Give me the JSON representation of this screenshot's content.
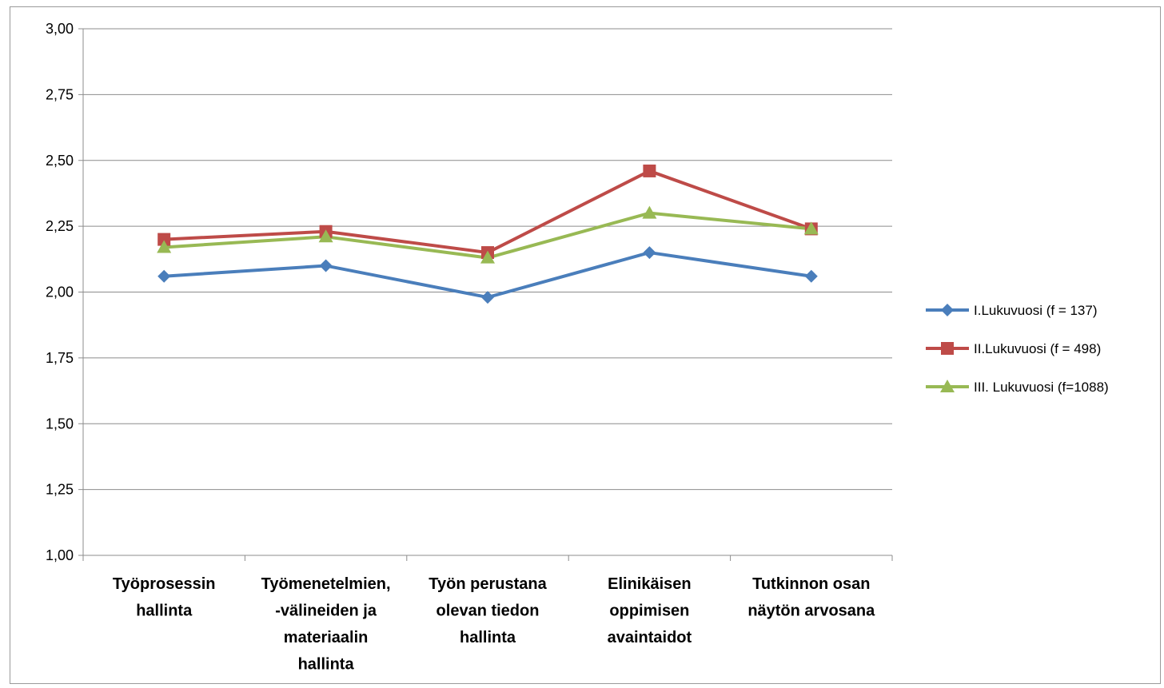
{
  "chart_data": {
    "type": "line",
    "categories": [
      [
        "Työprosessin",
        "hallinta"
      ],
      [
        "Työmenetelmien,",
        "-välineiden ja",
        "materiaalin",
        "hallinta"
      ],
      [
        "Työn perustana",
        "olevan tiedon",
        "hallinta"
      ],
      [
        "Elinikäisen",
        "oppimisen",
        "avaintaidot"
      ],
      [
        "Tutkinnon osan",
        "näytön arvosana"
      ]
    ],
    "y_ticks": [
      "1,00",
      "1,25",
      "1,50",
      "1,75",
      "2,00",
      "2,25",
      "2,50",
      "2,75",
      "3,00"
    ],
    "ylim": [
      1.0,
      3.0
    ],
    "grid": true,
    "legend_position": "right",
    "series": [
      {
        "name": "I.Lukuvuosi (f = 137)",
        "color": "#4a7ebb",
        "marker": "diamond",
        "values": [
          2.06,
          2.1,
          1.98,
          2.15,
          2.06
        ]
      },
      {
        "name": "II.Lukuvuosi (f = 498)",
        "color": "#be4b48",
        "marker": "square",
        "values": [
          2.2,
          2.23,
          2.15,
          2.46,
          2.24
        ]
      },
      {
        "name": "III. Lukuvuosi  (f=1088)",
        "color": "#98b954",
        "marker": "triangle",
        "values": [
          2.17,
          2.21,
          2.13,
          2.3,
          2.24
        ]
      }
    ]
  }
}
